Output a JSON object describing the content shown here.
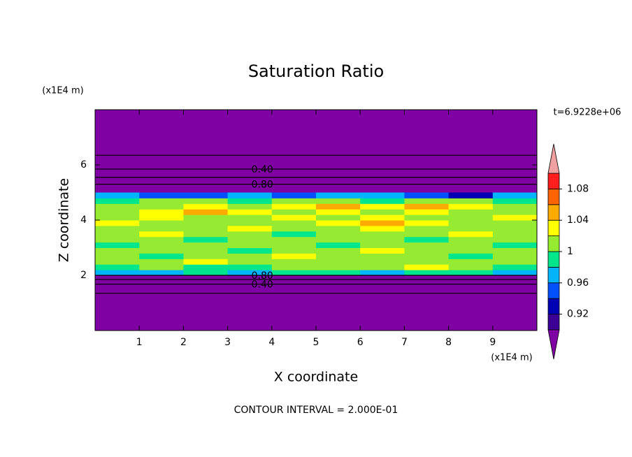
{
  "chart_data": {
    "type": "contour",
    "title": "Saturation Ratio",
    "x_label": "X coordinate",
    "y_label": "Z coordinate",
    "x_unit": "(x1E4 m)",
    "y_unit": "(x1E4 m)",
    "time_label": "t=6.9228e+06",
    "footer": "CONTOUR INTERVAL = 2.000E-01",
    "xlim": [
      0,
      10
    ],
    "ylim": [
      0,
      8
    ],
    "xticks": [
      1,
      2,
      3,
      4,
      5,
      6,
      7,
      8,
      9
    ],
    "yticks": [
      2,
      4,
      6
    ],
    "x_edges": [
      0,
      1,
      2,
      3,
      4,
      5,
      6,
      7,
      8,
      9,
      10
    ],
    "y_edges": [
      2.0,
      2.2,
      2.4,
      2.6,
      2.8,
      3.0,
      3.2,
      3.4,
      3.6,
      3.8,
      4.0,
      4.2,
      4.4,
      4.6,
      4.8,
      5.0
    ],
    "values": [
      [
        0.97,
        0.97,
        0.99,
        0.97,
        0.99,
        0.99,
        0.97,
        0.99,
        0.99,
        0.97
      ],
      [
        0.99,
        1.01,
        0.99,
        0.99,
        1.01,
        1.01,
        1.01,
        1.03,
        1.01,
        0.99
      ],
      [
        1.01,
        1.01,
        1.03,
        1.01,
        1.01,
        1.01,
        1.01,
        1.01,
        1.01,
        1.01
      ],
      [
        1.01,
        0.99,
        1.01,
        1.01,
        1.03,
        1.01,
        1.01,
        1.01,
        0.99,
        1.01
      ],
      [
        1.01,
        1.01,
        1.01,
        0.99,
        1.01,
        1.01,
        1.03,
        1.01,
        1.01,
        1.01
      ],
      [
        0.99,
        1.01,
        1.01,
        1.01,
        1.01,
        0.99,
        1.01,
        1.01,
        1.01,
        0.99
      ],
      [
        1.01,
        1.01,
        0.99,
        1.01,
        1.01,
        1.01,
        1.01,
        0.99,
        1.01,
        1.01
      ],
      [
        1.01,
        1.03,
        1.01,
        1.01,
        0.99,
        1.01,
        1.01,
        1.01,
        1.03,
        1.01
      ],
      [
        1.01,
        1.01,
        1.01,
        1.03,
        1.01,
        1.01,
        1.03,
        1.01,
        1.01,
        1.01
      ],
      [
        1.03,
        1.01,
        1.01,
        1.01,
        1.01,
        1.03,
        1.05,
        1.03,
        1.01,
        1.01
      ],
      [
        1.01,
        1.03,
        1.01,
        1.01,
        1.03,
        1.01,
        1.03,
        1.01,
        1.01,
        1.03
      ],
      [
        1.01,
        1.03,
        1.05,
        1.03,
        1.01,
        1.03,
        1.01,
        1.03,
        1.01,
        1.01
      ],
      [
        1.01,
        1.01,
        1.03,
        1.01,
        1.03,
        1.05,
        1.03,
        1.05,
        1.03,
        1.01
      ],
      [
        0.99,
        1.01,
        1.01,
        0.99,
        1.01,
        1.01,
        0.99,
        1.01,
        1.01,
        0.99
      ],
      [
        0.97,
        0.95,
        0.95,
        0.97,
        0.95,
        0.97,
        0.97,
        0.95,
        0.93,
        0.97
      ]
    ],
    "levels": [
      0.9,
      0.92,
      0.94,
      0.96,
      0.98,
      1.0,
      1.02,
      1.04,
      1.06,
      1.08,
      1.1
    ],
    "colors": [
      "#7f00a3",
      "#3c0096",
      "#0000b4",
      "#0050ff",
      "#00b4ff",
      "#00e68c",
      "#96eb32",
      "#ffff00",
      "#ffaa00",
      "#ff6400",
      "#ff1e1e",
      "#f0a0a0"
    ],
    "colorbar_ticks": [
      0.92,
      0.96,
      1,
      1.04,
      1.08
    ],
    "contours": [
      {
        "level": 0.2,
        "z": 6.35
      },
      {
        "level": {
          "value": 0.4,
          "label": "0.40"
        },
        "z": 5.85
      },
      {
        "level": 0.6,
        "z": 5.55
      },
      {
        "level": {
          "value": 0.8,
          "label": "0.80"
        },
        "z": 5.3
      },
      {
        "level": {
          "value": 0.8,
          "label": "0.80"
        },
        "z": 2.0
      },
      {
        "level": 0.6,
        "z": 1.85
      },
      {
        "level": {
          "value": 0.4,
          "label": "0.40"
        },
        "z": 1.68
      },
      {
        "level": 0.2,
        "z": 1.35
      }
    ]
  }
}
